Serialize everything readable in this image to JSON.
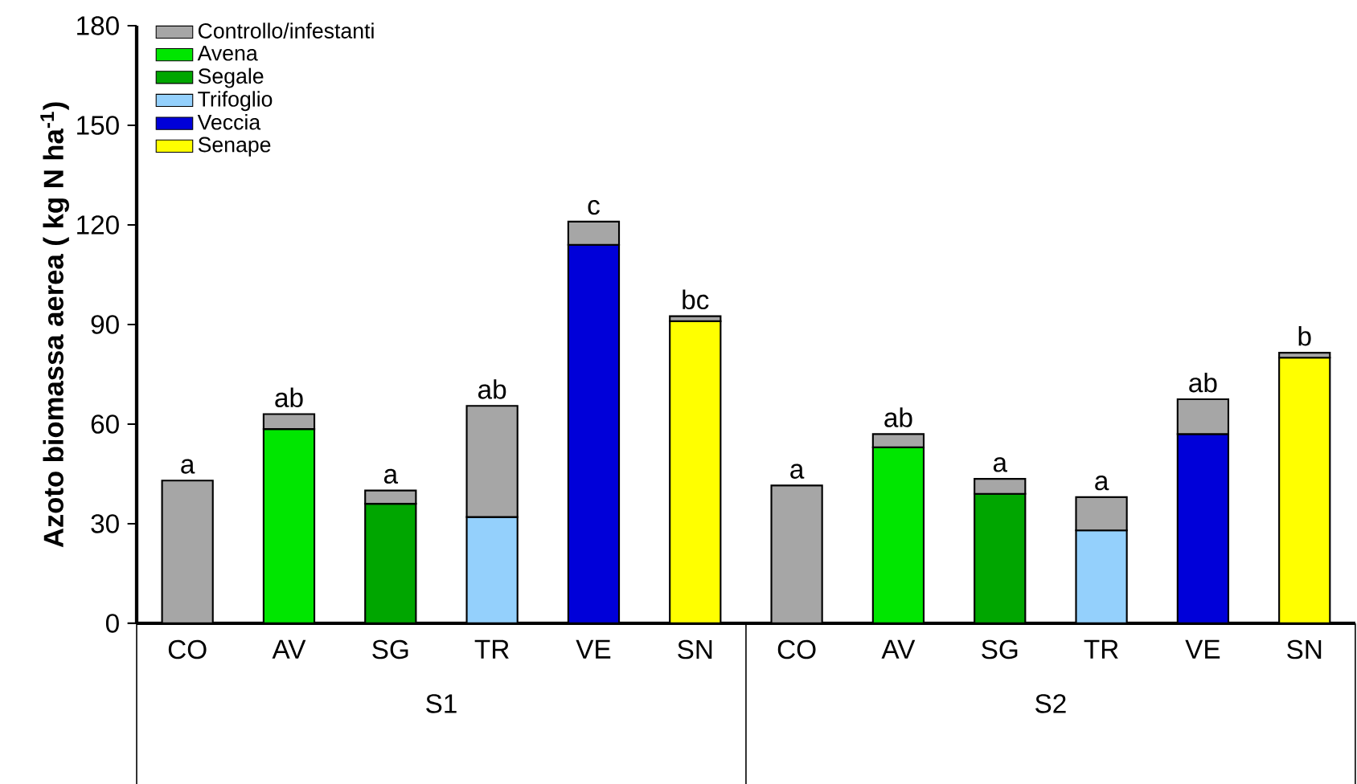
{
  "chart_data": {
    "type": "bar",
    "stacked": true,
    "ylabel": "Azoto biomassa aerea ( kg N ha$^{-1}$)",
    "categories": [
      "CO",
      "AV",
      "SG",
      "TR",
      "VE",
      "SN",
      "CO",
      "AV",
      "SG",
      "TR",
      "VE",
      "SN"
    ],
    "series": [
      {
        "name": "Avena",
        "color": "#00e600",
        "values": [
          null,
          58.5,
          null,
          null,
          null,
          null,
          null,
          53,
          null,
          null,
          null,
          null
        ]
      },
      {
        "name": "Segale",
        "color": "#00a600",
        "values": [
          null,
          null,
          36,
          null,
          null,
          null,
          null,
          null,
          39,
          null,
          null,
          null
        ]
      },
      {
        "name": "Trifoglio",
        "color": "#94d0fc",
        "values": [
          null,
          null,
          null,
          32,
          null,
          null,
          null,
          null,
          null,
          28,
          null,
          null
        ]
      },
      {
        "name": "Veccia",
        "color": "#0000d9",
        "values": [
          null,
          null,
          null,
          null,
          114,
          null,
          null,
          null,
          null,
          null,
          57,
          null
        ]
      },
      {
        "name": "Senape",
        "color": "#ffff00",
        "values": [
          null,
          null,
          null,
          null,
          null,
          91,
          null,
          null,
          null,
          null,
          null,
          80
        ]
      },
      {
        "name": "Controllo/infestanti",
        "color": "#a6a6a6",
        "values": [
          43,
          4.5,
          4,
          33.5,
          7,
          1.5,
          41.5,
          4,
          4.5,
          10,
          10.5,
          1.5
        ]
      }
    ],
    "ylim": [
      0,
      180
    ],
    "yticks": [
      0,
      30,
      60,
      90,
      120,
      150,
      180
    ],
    "legend": "top left",
    "annotations": [
      "a",
      "ab",
      "a",
      "ab",
      "c",
      "bc",
      "a",
      "ab",
      "a",
      "a",
      "ab",
      "b",
      "S1",
      "S2"
    ]
  }
}
